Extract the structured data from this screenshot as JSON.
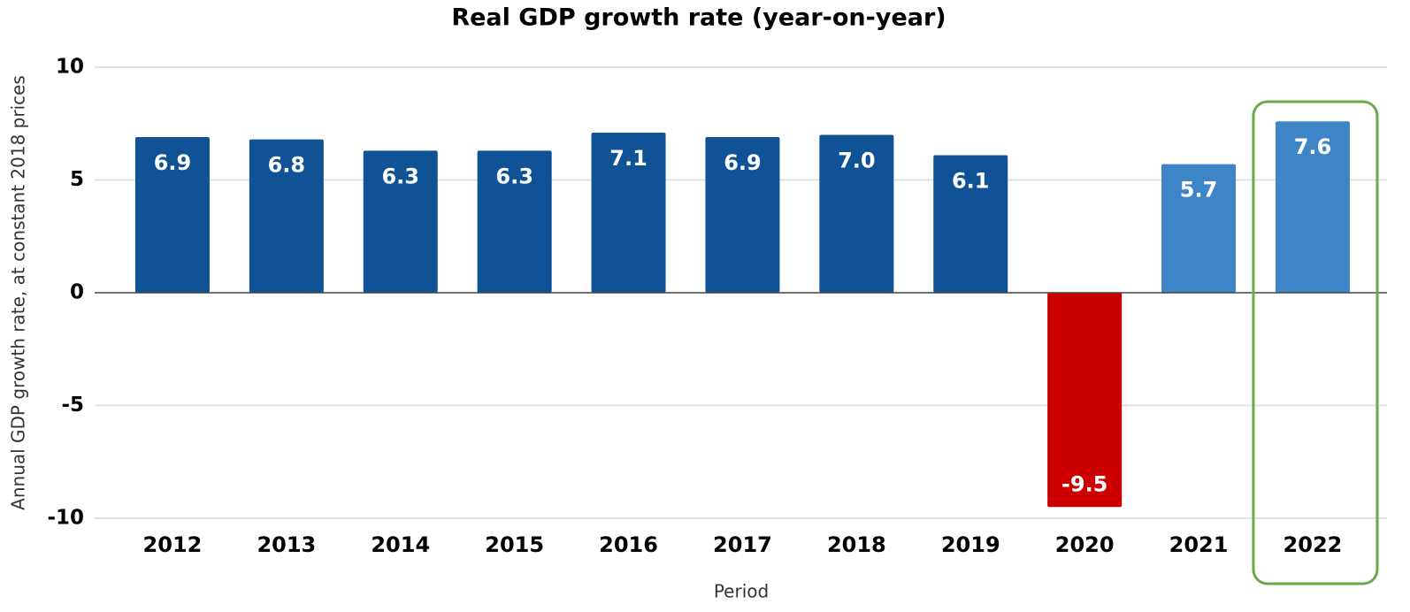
{
  "chart_data": {
    "type": "bar",
    "title": "Real GDP growth rate (year-on-year)",
    "x_label": "Period",
    "y_label": "Annual GDP growth rate, at constant 2018 prices",
    "categories": [
      "2012",
      "2013",
      "2014",
      "2015",
      "2016",
      "2017",
      "2018",
      "2019",
      "2020",
      "2021",
      "2022"
    ],
    "values": [
      6.9,
      6.8,
      6.3,
      6.3,
      7.1,
      6.9,
      7.0,
      6.1,
      -9.5,
      5.7,
      7.6
    ],
    "value_labels": [
      "6.9",
      "6.8",
      "6.3",
      "6.3",
      "7.1",
      "6.9",
      "7.0",
      "6.1",
      "-9.5",
      "5.7",
      "7.6"
    ],
    "colors": [
      "#0f5296",
      "#0f5296",
      "#0f5296",
      "#0f5296",
      "#0f5296",
      "#0f5296",
      "#0f5296",
      "#0f5296",
      "#cc0000",
      "#3e85c7",
      "#3e85c7"
    ],
    "ylim": [
      -10,
      10
    ],
    "yticks": [
      -10,
      -5,
      0,
      5,
      10
    ],
    "grid": true
  }
}
